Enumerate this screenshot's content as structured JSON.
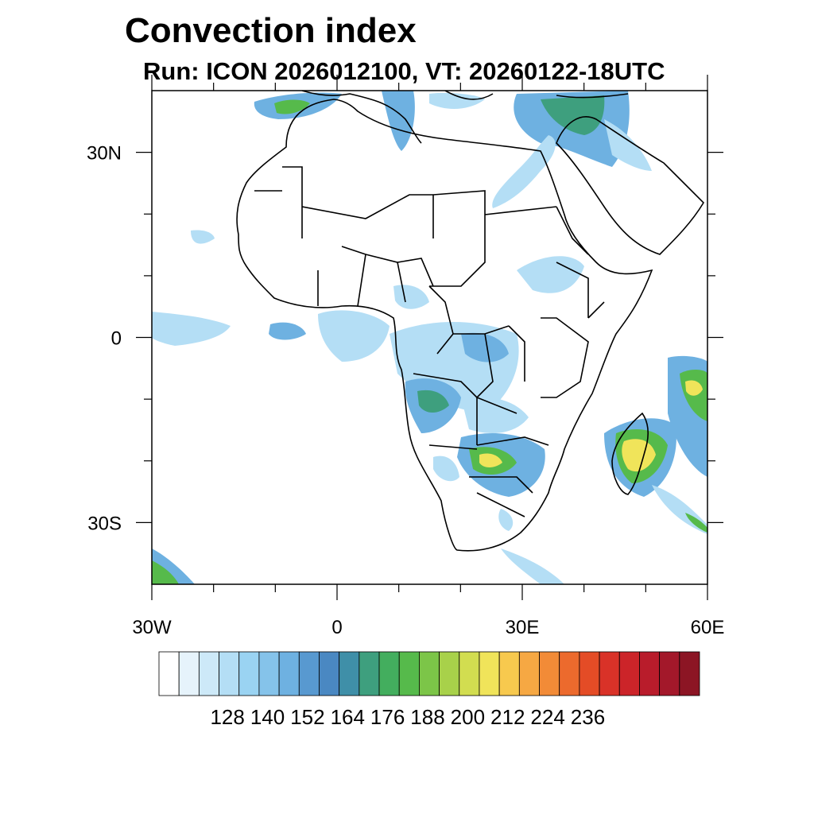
{
  "figure": {
    "title": "Convection index",
    "subtitle": "Run: ICON 2026012100,  VT: 20260122-18UTC"
  },
  "axes": {
    "lon_range": [
      -30,
      60
    ],
    "lat_range": [
      -40,
      40
    ],
    "lon_labels": [
      {
        "value": -30,
        "text": "30W"
      },
      {
        "value": 0,
        "text": "0"
      },
      {
        "value": 30,
        "text": "30E"
      },
      {
        "value": 60,
        "text": "60E"
      }
    ],
    "lat_labels": [
      {
        "value": 30,
        "text": "30N"
      },
      {
        "value": 0,
        "text": "0"
      },
      {
        "value": -30,
        "text": "30S"
      }
    ],
    "minor_lon_ticks": [
      -20,
      -10,
      10,
      20,
      40,
      50
    ],
    "minor_lat_ticks": [
      20,
      10,
      -10,
      -20
    ]
  },
  "colorbar": {
    "colors": [
      "#ffffff",
      "#e6f3fb",
      "#cde9f8",
      "#b4def5",
      "#9ad3f2",
      "#85c3ea",
      "#6eb1e1",
      "#5899d0",
      "#4a88c2",
      "#3f8fa8",
      "#3e9f7e",
      "#43ae5e",
      "#56ba4b",
      "#7cc548",
      "#a8d14a",
      "#d2dd50",
      "#f0e45a",
      "#f7c94e",
      "#f6a843",
      "#f28b37",
      "#ec6a2d",
      "#e44c26",
      "#d93228",
      "#cc2429",
      "#b91c2b",
      "#a3182a",
      "#8c1524"
    ],
    "labels": [
      "128",
      "140",
      "152",
      "164",
      "176",
      "188",
      "200",
      "212",
      "224",
      "236"
    ]
  },
  "map_colors": {
    "coast": "#000000",
    "low": "#b4def5",
    "mid": "#6eb1e1",
    "teal": "#3e9f7e",
    "green": "#56ba4b",
    "yellow": "#f0e45a"
  }
}
